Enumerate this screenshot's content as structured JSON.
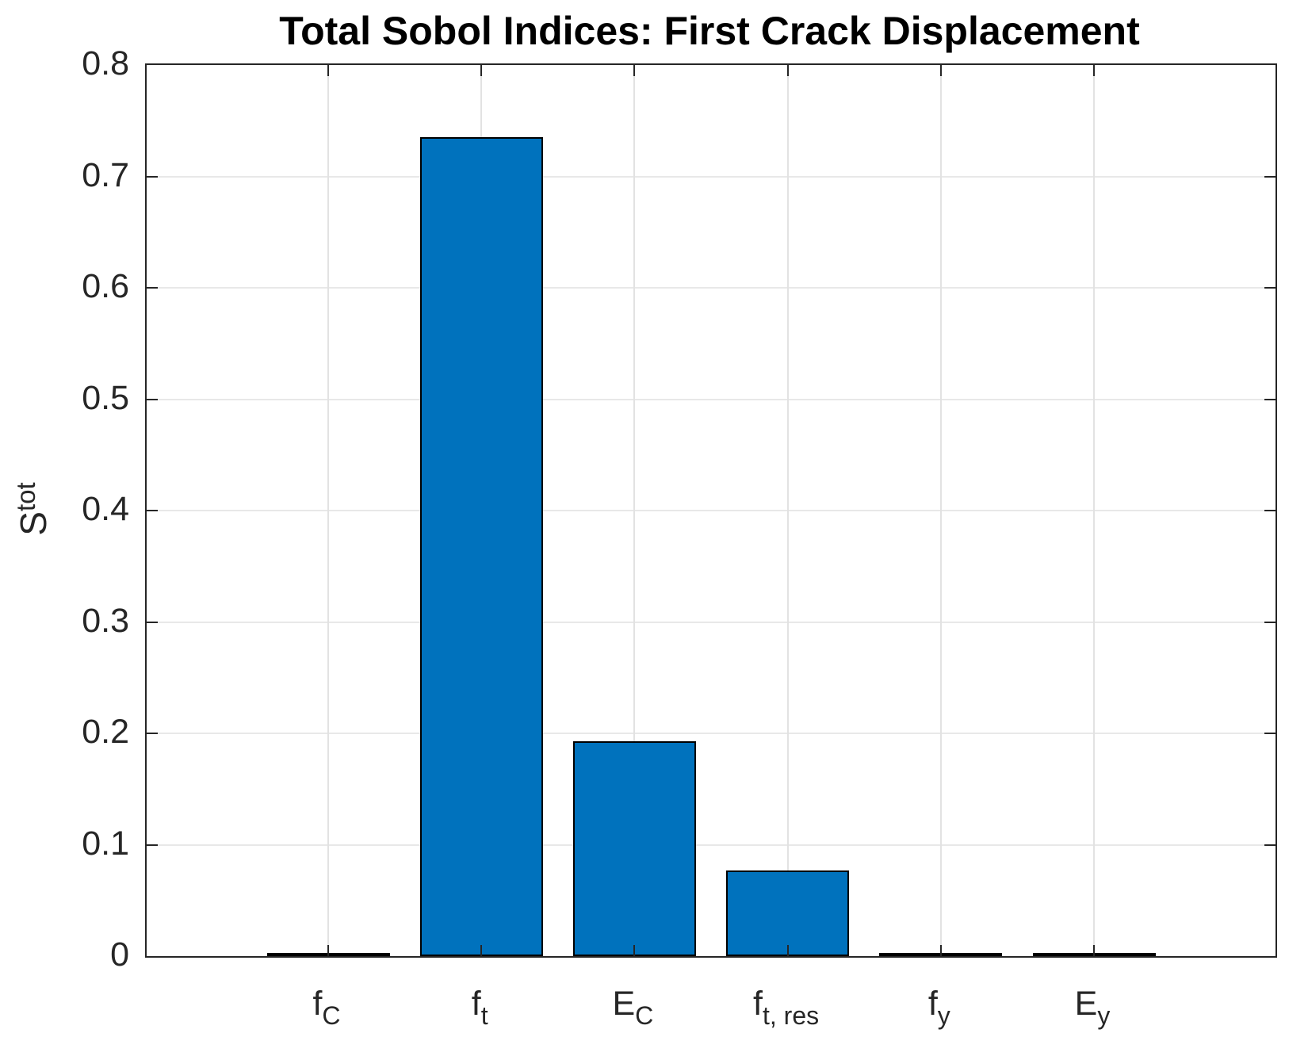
{
  "figure": {
    "background": "#ffffff"
  },
  "chart_data": {
    "type": "bar",
    "title": "Total Sobol Indices: First Crack Displacement",
    "ylabel": "S^tot",
    "ylabel_base": "S",
    "ylabel_sup": "tot",
    "xlabel": "",
    "categories": [
      "f_C",
      "f_t",
      "E_C",
      "f_t,res",
      "f_y",
      "E_y"
    ],
    "categories_rich": [
      {
        "base": "f",
        "sub": "C"
      },
      {
        "base": "f",
        "sub": "t"
      },
      {
        "base": "E",
        "sub": "C"
      },
      {
        "base": "f",
        "sub": "t, res"
      },
      {
        "base": "f",
        "sub": "y"
      },
      {
        "base": "E",
        "sub": "y"
      }
    ],
    "values": [
      0.001,
      0.735,
      0.193,
      0.077,
      0.001,
      0.001
    ],
    "ylim": [
      0,
      0.8
    ],
    "yticks": [
      0,
      0.1,
      0.2,
      0.3,
      0.4,
      0.5,
      0.6,
      0.7,
      0.8
    ],
    "ytick_labels": [
      "0",
      "0.1",
      "0.2",
      "0.3",
      "0.4",
      "0.5",
      "0.6",
      "0.7",
      "0.8"
    ],
    "grid": true,
    "legend_position": "none",
    "colors": {
      "bar_fill": "#0072BD",
      "bar_edge": "#000000",
      "axis": "#262626",
      "grid_h": "#e8e8e8",
      "grid_v": "#e2e2e2",
      "title": "#000000",
      "tick_label": "#262626"
    }
  }
}
